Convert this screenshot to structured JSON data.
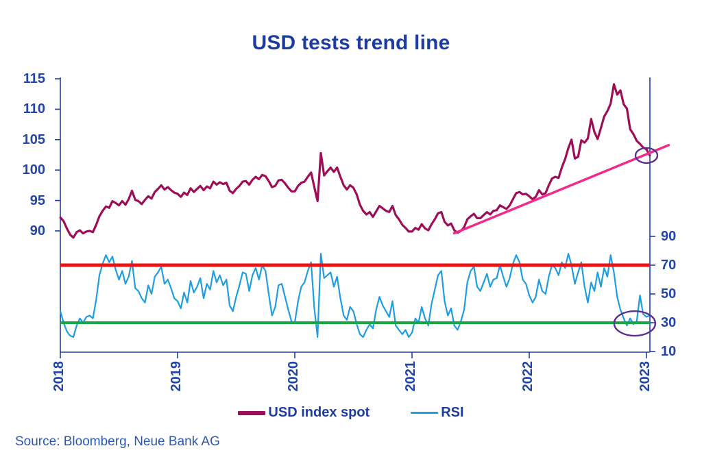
{
  "title": "USD tests trend line",
  "source_note": "Source: Bloomberg, Neue Bank AG",
  "legend": [
    {
      "label": "USD index spot",
      "color": "#9e0d56"
    },
    {
      "label": "RSI",
      "color": "#1f9de2"
    }
  ],
  "chart_data": {
    "type": "line",
    "title": "USD tests trend line",
    "x_ticks": [
      "2018",
      "2019",
      "2020",
      "2021",
      "2022",
      "2023"
    ],
    "x_range": [
      2018,
      2023.03
    ],
    "left_axis": {
      "name": "USD index spot",
      "ticks": [
        115,
        110,
        105,
        100,
        95,
        90
      ],
      "range": [
        87,
        115.3
      ]
    },
    "right_axis": {
      "name": "RSI",
      "ticks": [
        90,
        70,
        50,
        30,
        10
      ],
      "range": [
        9.5,
        100
      ]
    },
    "axis_color": "#1e3fa1",
    "x_start": 2018.0,
    "points_per_year": 36,
    "series": [
      {
        "name": "USD index spot",
        "axis": "left",
        "color": "#9e0d56",
        "values": [
          92.2,
          91.6,
          90.4,
          89.4,
          88.9,
          89.8,
          90.1,
          89.6,
          89.9,
          90.0,
          89.8,
          91.0,
          92.4,
          93.3,
          94.0,
          93.8,
          94.9,
          94.6,
          94.2,
          94.9,
          94.3,
          95.2,
          96.6,
          95.1,
          94.9,
          94.4,
          95.1,
          95.7,
          95.3,
          96.4,
          96.9,
          97.5,
          96.8,
          97.2,
          96.7,
          96.3,
          96.1,
          95.6,
          96.3,
          95.9,
          97.0,
          96.4,
          96.9,
          97.4,
          96.7,
          97.3,
          97.0,
          98.1,
          97.6,
          98.0,
          97.7,
          97.9,
          96.6,
          96.2,
          96.9,
          97.4,
          98.1,
          98.2,
          97.6,
          98.4,
          98.9,
          98.5,
          99.2,
          99.0,
          98.2,
          97.2,
          97.4,
          98.3,
          98.4,
          97.8,
          97.1,
          96.5,
          96.5,
          97.4,
          97.9,
          98.1,
          98.9,
          99.6,
          97.2,
          94.9,
          102.8,
          99.1,
          99.8,
          100.4,
          99.7,
          100.4,
          98.9,
          97.5,
          96.8,
          97.5,
          97.1,
          96.0,
          94.3,
          93.3,
          92.7,
          93.1,
          92.3,
          93.2,
          94.1,
          93.7,
          93.3,
          93.1,
          94.1,
          92.6,
          91.9,
          91.0,
          90.5,
          89.9,
          89.9,
          90.5,
          90.2,
          91.1,
          90.4,
          90.1,
          91.1,
          91.9,
          92.9,
          93.1,
          91.5,
          90.9,
          91.2,
          90.1,
          89.7,
          90.0,
          90.6,
          91.9,
          92.4,
          92.8,
          92.1,
          92.1,
          92.6,
          93.1,
          92.7,
          93.3,
          93.4,
          94.2,
          93.9,
          93.6,
          94.2,
          95.2,
          96.2,
          96.4,
          96.0,
          96.1,
          95.7,
          95.2,
          95.6,
          96.7,
          96.0,
          96.2,
          97.5,
          98.6,
          98.9,
          98.7,
          100.4,
          101.8,
          103.6,
          105.0,
          101.9,
          102.2,
          104.9,
          104.5,
          105.2,
          108.4,
          106.3,
          105.1,
          106.9,
          108.8,
          109.7,
          110.9,
          114.1,
          112.4,
          113.1,
          110.8,
          110.1,
          106.7,
          105.9,
          104.8,
          104.3,
          103.7,
          103.4,
          102.4
        ]
      },
      {
        "name": "RSI",
        "axis": "right",
        "color": "#1f9de2",
        "values": [
          38,
          30,
          24,
          21,
          20,
          28,
          33,
          30,
          34,
          35,
          33,
          46,
          63,
          71,
          77,
          72,
          76,
          67,
          60,
          66,
          57,
          62,
          73,
          54,
          52,
          47,
          44,
          56,
          50,
          62,
          65,
          69,
          57,
          60,
          54,
          47,
          45,
          40,
          51,
          44,
          59,
          51,
          55,
          61,
          47,
          57,
          53,
          66,
          58,
          63,
          56,
          60,
          42,
          38,
          48,
          56,
          65,
          64,
          52,
          63,
          68,
          60,
          70,
          66,
          50,
          35,
          41,
          56,
          57,
          48,
          39,
          31,
          30,
          45,
          55,
          58,
          66,
          72,
          40,
          20,
          78,
          61,
          63,
          65,
          55,
          62,
          47,
          35,
          32,
          41,
          38,
          29,
          22,
          20,
          25,
          29,
          26,
          39,
          48,
          42,
          38,
          34,
          45,
          28,
          25,
          22,
          25,
          20,
          23,
          33,
          30,
          41,
          33,
          28,
          43,
          53,
          63,
          66,
          45,
          35,
          40,
          28,
          25,
          31,
          39,
          58,
          66,
          69,
          55,
          52,
          58,
          64,
          55,
          60,
          61,
          70,
          62,
          55,
          61,
          71,
          77,
          72,
          60,
          57,
          49,
          44,
          48,
          60,
          52,
          50,
          62,
          70,
          68,
          63,
          72,
          68,
          78,
          70,
          57,
          65,
          72,
          55,
          44,
          58,
          52,
          65,
          55,
          68,
          62,
          77,
          65,
          48,
          39,
          33,
          28,
          33,
          29,
          31,
          49,
          36,
          34,
          35
        ]
      }
    ],
    "reference_lines": [
      {
        "name": "RSI overbought",
        "axis": "right",
        "value": 70,
        "color": "#ee1111"
      },
      {
        "name": "RSI oversold",
        "axis": "right",
        "value": 30,
        "color": "#17a845"
      }
    ],
    "trend_line": {
      "name": "USD rising trend line",
      "color": "#f02b8d",
      "x1": 2021.36,
      "value1": 89.6,
      "x2": 2023.19,
      "value2": 104.1
    },
    "annotations": [
      {
        "shape": "ellipse",
        "name": "price touches trend line",
        "axis": "left",
        "x": 2023.0,
        "value": 102.4,
        "color": "#5b2e91"
      },
      {
        "shape": "ellipse",
        "name": "RSI near oversold",
        "axis": "right",
        "x": 2022.9,
        "value": 29.5,
        "color": "#5b2e91"
      }
    ],
    "legend_position": "bottom-center",
    "grid": false
  }
}
